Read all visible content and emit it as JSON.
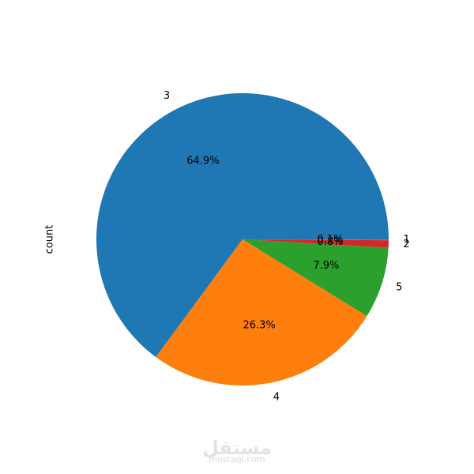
{
  "chart_data": {
    "type": "pie",
    "ylabel": "count",
    "categories": [
      "3",
      "4",
      "5",
      "2",
      "1"
    ],
    "values": [
      64.9,
      26.3,
      7.9,
      0.8,
      0.1
    ],
    "value_labels": [
      "64.9%",
      "26.3%",
      "7.9%",
      "0.8%",
      "0.1%"
    ],
    "colors": [
      "#1f77b4",
      "#ff7f0e",
      "#2ca02c",
      "#d62728",
      "#9467bd"
    ]
  },
  "watermark": {
    "logo": "مستقل",
    "site": "mostaql.com"
  }
}
